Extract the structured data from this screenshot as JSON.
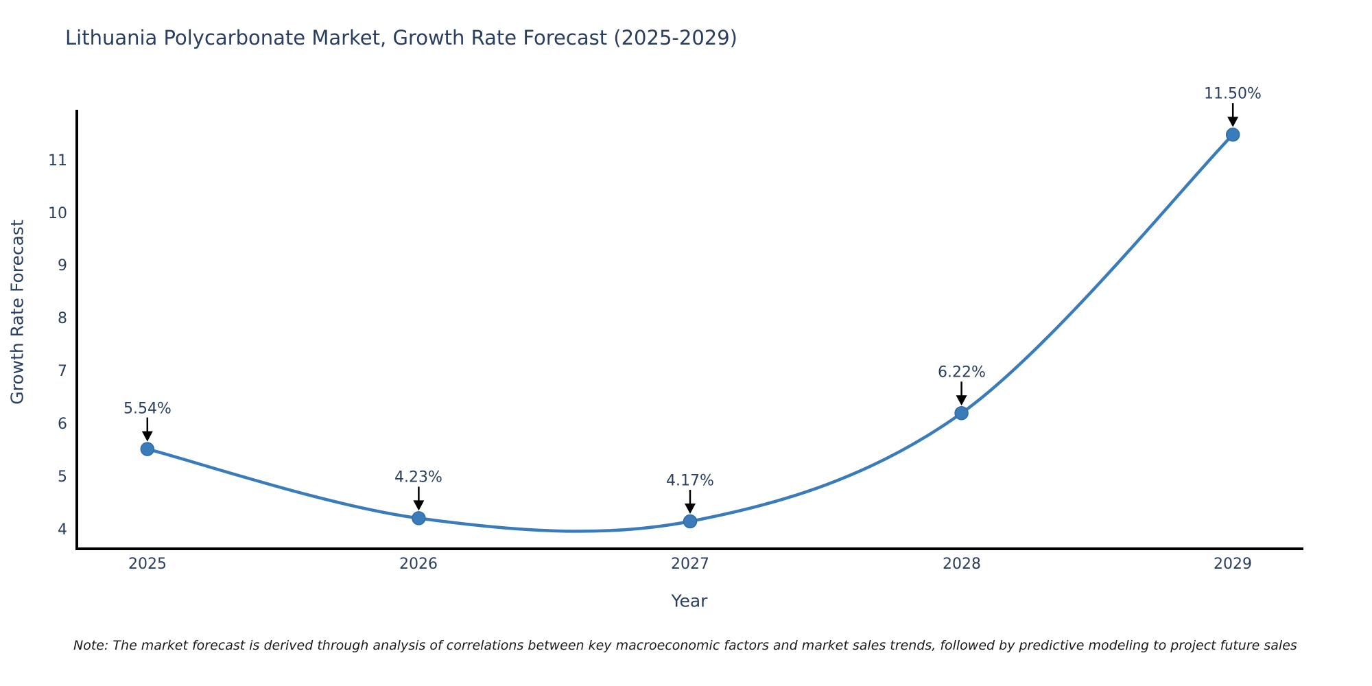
{
  "note": "Note: The market forecast is derived through analysis of correlations between key macroeconomic factors and market sales trends, followed by predictive modeling to project future sales",
  "chart_data": {
    "type": "line",
    "title": "Lithuania Polycarbonate Market, Growth Rate Forecast (2025-2029)",
    "xlabel": "Year",
    "ylabel": "Growth Rate Forecast",
    "x": [
      2025,
      2026,
      2027,
      2028,
      2029
    ],
    "values": [
      5.54,
      4.23,
      4.17,
      6.22,
      11.5
    ],
    "point_labels": [
      "5.54%",
      "4.23%",
      "4.17%",
      "6.22%",
      "11.50%"
    ],
    "xticks": [
      "2025",
      "2026",
      "2027",
      "2028",
      "2029"
    ],
    "yticks": [
      4,
      5,
      6,
      7,
      8,
      9,
      10,
      11
    ],
    "xlim": [
      2024.74,
      2029.26
    ],
    "ylim": [
      3.65,
      11.97
    ],
    "line_shape": "spline",
    "grid": false,
    "legend": "none",
    "colors": {
      "line": "#3a7cba",
      "marker": "#3a7cba",
      "marker_edge": "#2e6da4",
      "axis": "#000000",
      "text": "#2a3f5f",
      "arrow": "#000000"
    }
  }
}
